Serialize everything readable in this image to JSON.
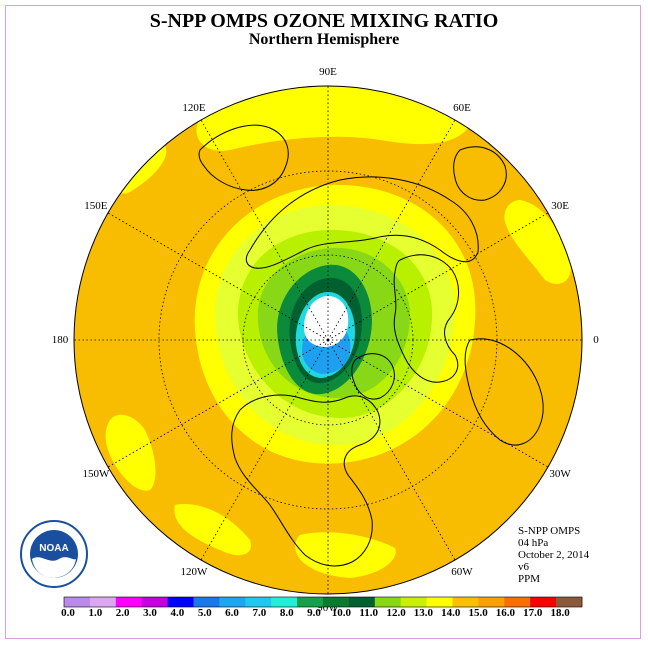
{
  "title": "S-NPP OMPS OZONE MIXING RATIO",
  "subtitle": "Northern Hemisphere",
  "longitude_labels": [
    {
      "text": "90E",
      "lon": 90
    },
    {
      "text": "60E",
      "lon": 60
    },
    {
      "text": "30E",
      "lon": 30
    },
    {
      "text": "0",
      "lon": 0
    },
    {
      "text": "30W",
      "lon": -30
    },
    {
      "text": "60W",
      "lon": -60
    },
    {
      "text": "90W",
      "lon": -90
    },
    {
      "text": "120W",
      "lon": -120
    },
    {
      "text": "150W",
      "lon": -150
    },
    {
      "text": "180",
      "lon": 180
    },
    {
      "text": "150E",
      "lon": 150
    },
    {
      "text": "120E",
      "lon": 120
    }
  ],
  "info": {
    "instrument": "S-NPP OMPS",
    "level": "04 hPa",
    "date": "October 2, 2014",
    "version": "v6",
    "units": "PPM"
  },
  "logo_text": "NOAA",
  "colorbar": {
    "labels": [
      "0.0",
      "1.0",
      "2.0",
      "3.0",
      "4.0",
      "5.0",
      "6.0",
      "7.0",
      "8.0",
      "9.0",
      "10.0",
      "11.0",
      "12.0",
      "13.0",
      "14.0",
      "15.0",
      "16.0",
      "17.0",
      "18.0"
    ],
    "colors": [
      "#b98ae8",
      "#d9a8f0",
      "#ff00ff",
      "#c400e0",
      "#0000ff",
      "#1a78e8",
      "#1ea6f0",
      "#20c8f0",
      "#20f0d8",
      "#16a04a",
      "#0a7a30",
      "#006030",
      "#88d818",
      "#c8f000",
      "#ffff00",
      "#f8c000",
      "#f8a000",
      "#f87000",
      "#f80000",
      "#8b5a3c"
    ]
  },
  "map_colors": {
    "background": "#f8bc00",
    "yellow": "#ffff00",
    "light_yellow_green": "#e6ff30",
    "light_green": "#b8f000",
    "green": "#88d818",
    "dark_green_1": "#0a8a3a",
    "dark_green_2": "#006030",
    "cyan": "#20d8e0",
    "blue": "#1ea0f0",
    "white": "#ffffff"
  }
}
